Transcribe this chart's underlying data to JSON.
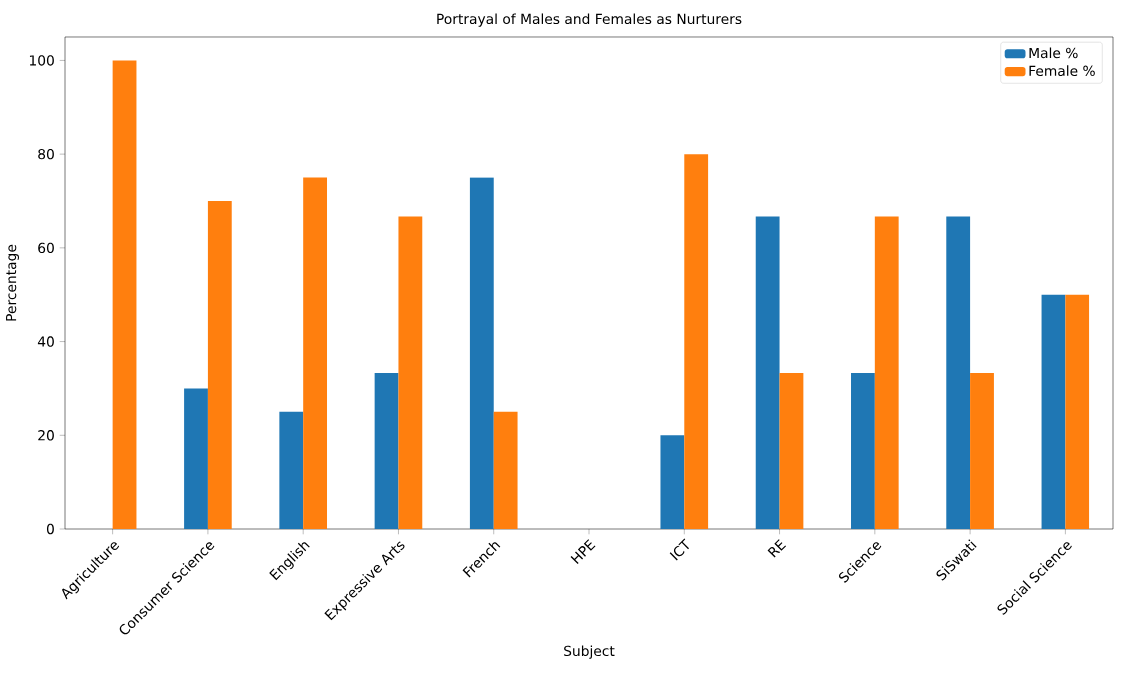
{
  "chart_data": {
    "type": "bar",
    "title": "Portrayal of Males and Females as Nurturers",
    "xlabel": "Subject",
    "ylabel": "Percentage",
    "categories": [
      "Agriculture",
      "Consumer Science",
      "English",
      "Expressive Arts",
      "French",
      "HPE",
      "ICT",
      "RE",
      "Science",
      "SiSwati",
      "Social Science"
    ],
    "series": [
      {
        "name": "Male %",
        "color": "#1f77b4",
        "values": [
          0,
          30,
          25,
          33.3,
          75,
          0,
          20,
          66.7,
          33.3,
          66.7,
          50
        ]
      },
      {
        "name": "Female %",
        "color": "#ff7f0e",
        "values": [
          100,
          70,
          75,
          66.7,
          25,
          0,
          80,
          33.3,
          66.7,
          33.3,
          50
        ]
      }
    ],
    "ylim": [
      0,
      105
    ],
    "yticks": [
      0,
      20,
      40,
      60,
      80,
      100
    ],
    "legend": "top right",
    "grid": false
  }
}
